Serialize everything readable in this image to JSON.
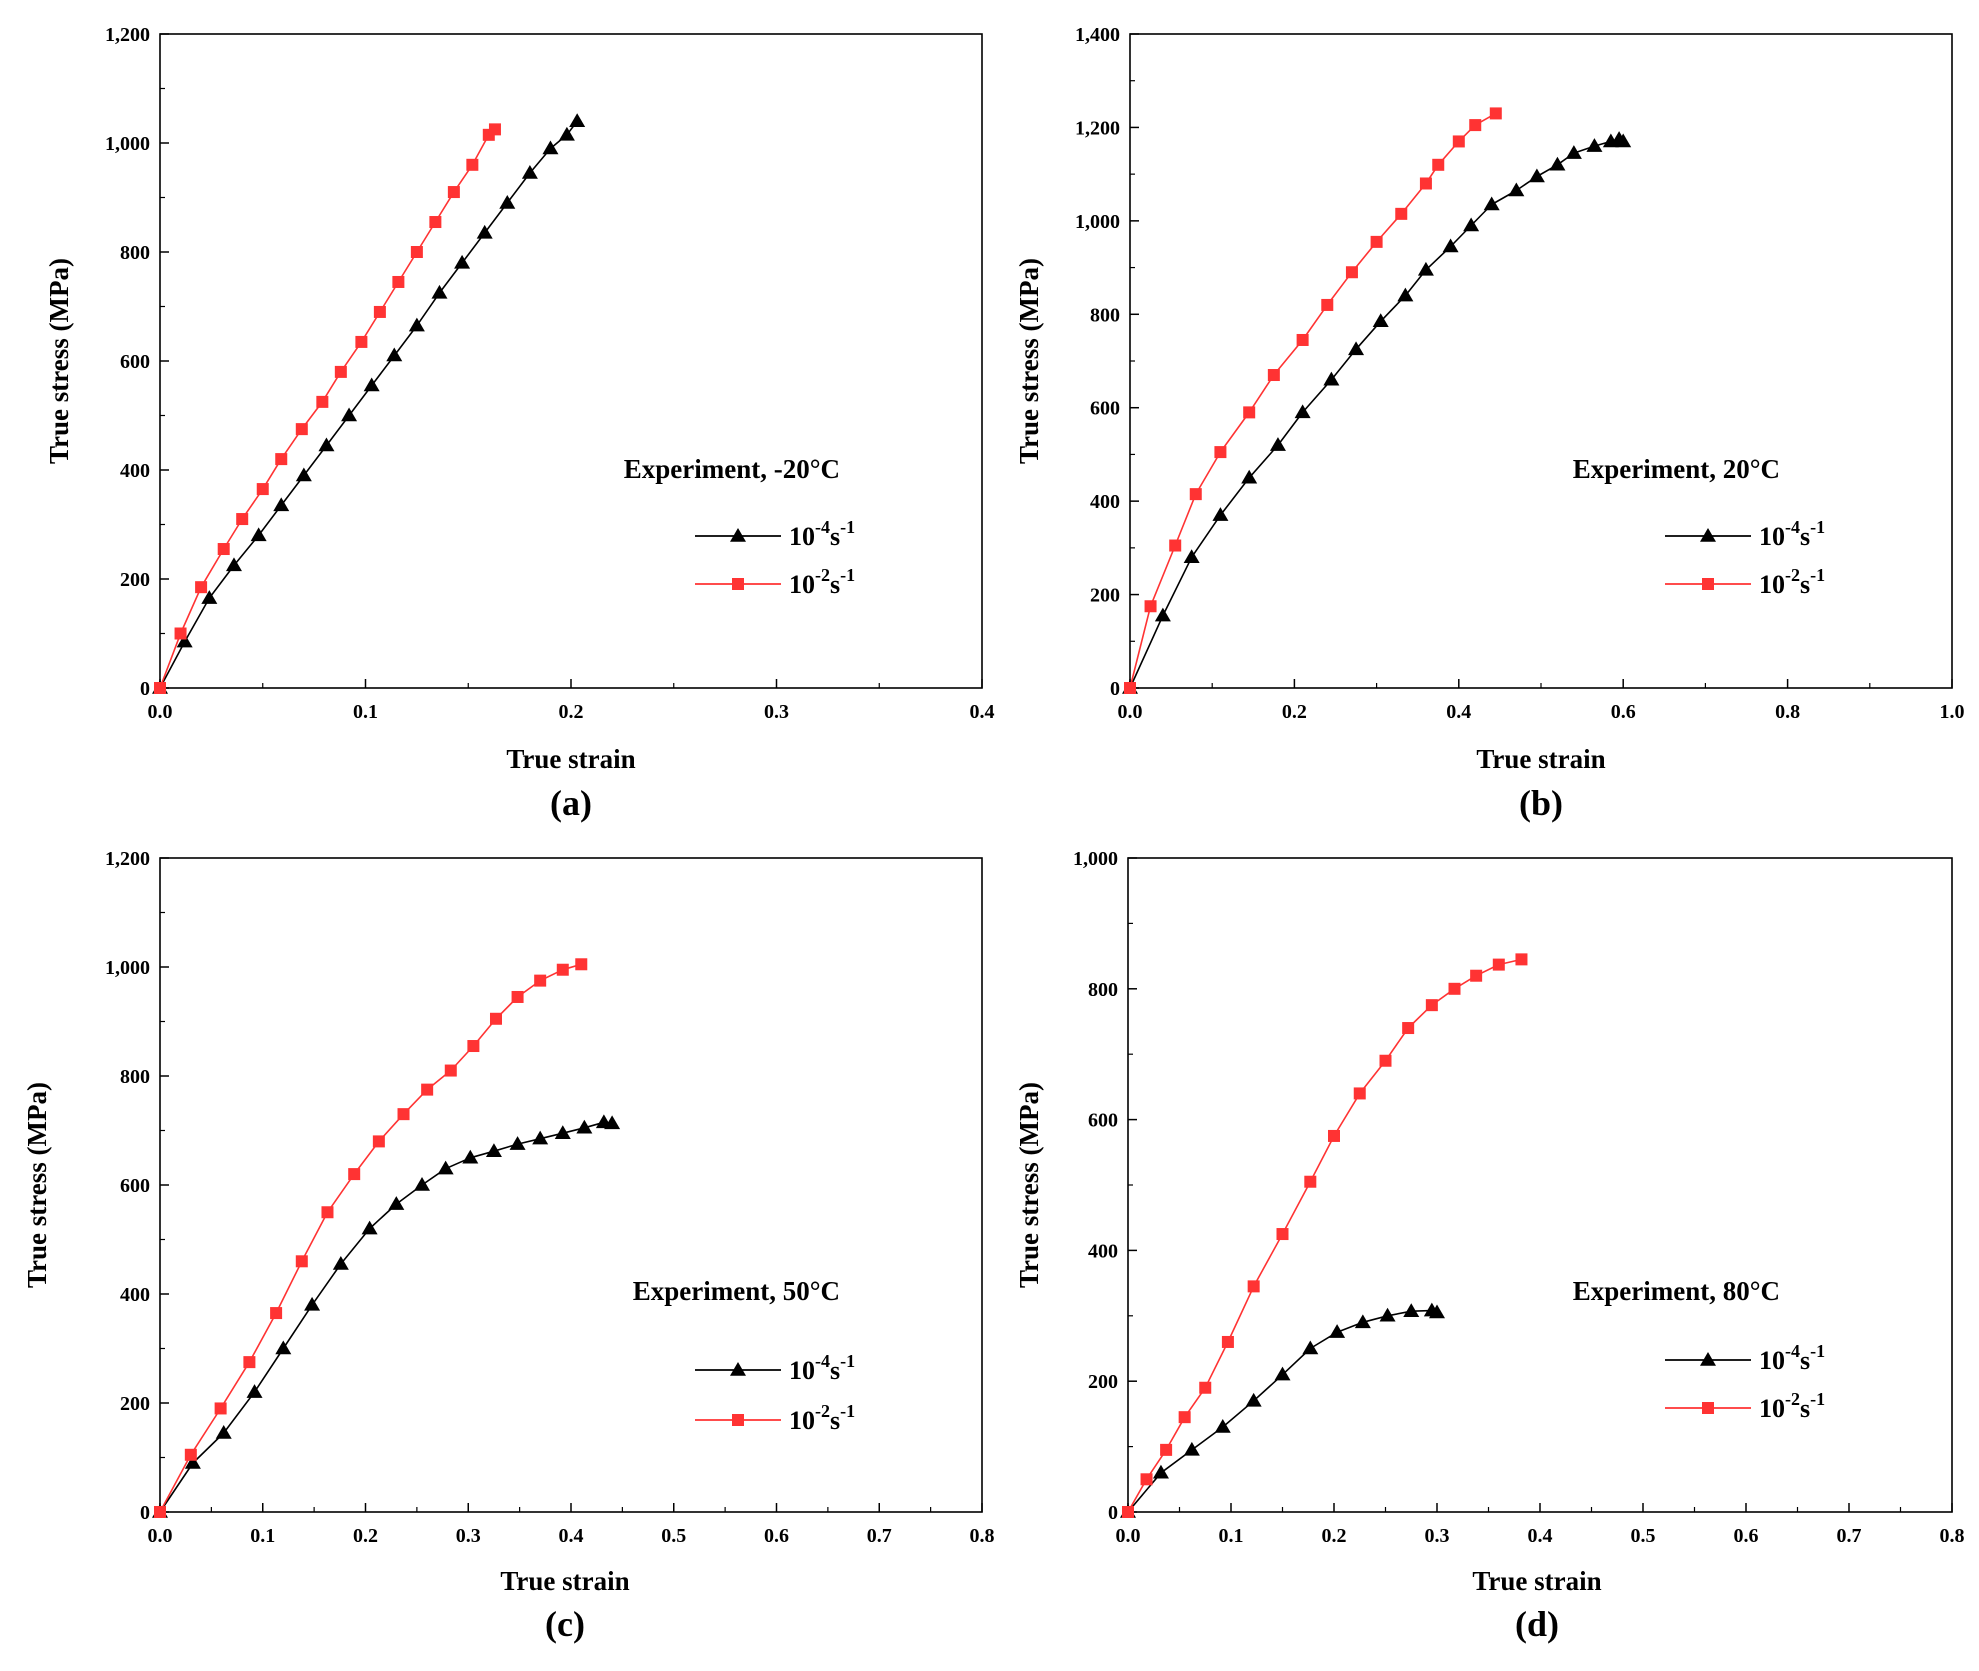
{
  "chart_data": [
    {
      "type": "line",
      "panel_label": "(a)",
      "xlabel": "True strain",
      "ylabel": "True stress (MPa)",
      "xlim": [
        0,
        0.4
      ],
      "ylim": [
        0,
        1200
      ],
      "xticks": [
        0,
        0.1,
        0.2,
        0.3,
        0.4
      ],
      "xtick_labels": [
        "0.0",
        "0.1",
        "0.2",
        "0.3",
        "0.4"
      ],
      "yticks": [
        0,
        200,
        400,
        600,
        800,
        1000,
        1200
      ],
      "ytick_labels": [
        "0",
        "200",
        "400",
        "600",
        "800",
        "1,000",
        "1,200"
      ],
      "legend": {
        "title": "Experiment, -20°C",
        "placement": "right"
      },
      "series": [
        {
          "name": "10^-4 s^-1",
          "base": "10",
          "exp1": "-4",
          "unit": "s",
          "exp2": "-1",
          "color": "#000000",
          "marker": "triangle",
          "x": [
            0,
            0.012,
            0.024,
            0.036,
            0.048,
            0.059,
            0.07,
            0.081,
            0.092,
            0.103,
            0.114,
            0.125,
            0.136,
            0.147,
            0.158,
            0.169,
            0.18,
            0.19,
            0.198,
            0.203
          ],
          "y": [
            0,
            85,
            165,
            225,
            280,
            335,
            390,
            445,
            500,
            555,
            610,
            665,
            725,
            780,
            835,
            890,
            945,
            990,
            1015,
            1040
          ]
        },
        {
          "name": "10^-2 s^-1",
          "base": "10",
          "exp1": "-2",
          "unit": "s",
          "exp2": "-1",
          "color": "#ff3333",
          "marker": "square",
          "x": [
            0,
            0.01,
            0.02,
            0.031,
            0.04,
            0.05,
            0.059,
            0.069,
            0.079,
            0.088,
            0.098,
            0.107,
            0.116,
            0.125,
            0.134,
            0.143,
            0.152,
            0.16,
            0.163
          ],
          "y": [
            0,
            100,
            185,
            255,
            310,
            365,
            420,
            475,
            525,
            580,
            635,
            690,
            745,
            800,
            855,
            910,
            960,
            1015,
            1025
          ]
        }
      ]
    },
    {
      "type": "line",
      "panel_label": "(b)",
      "xlabel": "True strain",
      "ylabel": "True stress (MPa)",
      "xlim": [
        0,
        1.0
      ],
      "ylim": [
        0,
        1400
      ],
      "xticks": [
        0,
        0.2,
        0.4,
        0.6,
        0.8,
        1.0
      ],
      "xtick_labels": [
        "0.0",
        "0.2",
        "0.4",
        "0.6",
        "0.8",
        "1.0"
      ],
      "yticks": [
        0,
        200,
        400,
        600,
        800,
        1000,
        1200,
        1400
      ],
      "ytick_labels": [
        "0",
        "200",
        "400",
        "600",
        "800",
        "1,000",
        "1,200",
        "1,400"
      ],
      "legend": {
        "title": "Experiment, 20°C",
        "placement": "right"
      },
      "series": [
        {
          "name": "10^-4 s^-1",
          "base": "10",
          "exp1": "-4",
          "unit": "s",
          "exp2": "-1",
          "color": "#000000",
          "marker": "triangle",
          "x": [
            0,
            0.04,
            0.075,
            0.11,
            0.145,
            0.18,
            0.21,
            0.245,
            0.275,
            0.305,
            0.335,
            0.36,
            0.39,
            0.415,
            0.44,
            0.47,
            0.495,
            0.52,
            0.54,
            0.565,
            0.585,
            0.595,
            0.6
          ],
          "y": [
            0,
            155,
            280,
            370,
            450,
            520,
            590,
            660,
            725,
            785,
            840,
            895,
            945,
            990,
            1035,
            1065,
            1095,
            1120,
            1145,
            1160,
            1170,
            1175,
            1170
          ]
        },
        {
          "name": "10^-2 s^-1",
          "base": "10",
          "exp1": "-2",
          "unit": "s",
          "exp2": "-1",
          "color": "#ff3333",
          "marker": "square",
          "x": [
            0,
            0.025,
            0.055,
            0.08,
            0.11,
            0.145,
            0.175,
            0.21,
            0.24,
            0.27,
            0.3,
            0.33,
            0.36,
            0.375,
            0.4,
            0.42,
            0.445
          ],
          "y": [
            0,
            175,
            305,
            415,
            505,
            590,
            670,
            745,
            820,
            890,
            955,
            1015,
            1080,
            1120,
            1170,
            1205,
            1230
          ]
        }
      ]
    },
    {
      "type": "line",
      "panel_label": "(c)",
      "xlabel": "True strain",
      "ylabel": "True stress (MPa)",
      "xlim": [
        0,
        0.8
      ],
      "ylim": [
        0,
        1200
      ],
      "xticks": [
        0,
        0.1,
        0.2,
        0.3,
        0.4,
        0.5,
        0.6,
        0.7,
        0.8
      ],
      "xtick_labels": [
        "0.0",
        "0.1",
        "0.2",
        "0.3",
        "0.4",
        "0.5",
        "0.6",
        "0.7",
        "0.8"
      ],
      "yticks": [
        0,
        200,
        400,
        600,
        800,
        1000,
        1200
      ],
      "ytick_labels": [
        "0",
        "200",
        "400",
        "600",
        "800",
        "1,000",
        "1,200"
      ],
      "legend": {
        "title": "Experiment, 50°C",
        "placement": "right"
      },
      "series": [
        {
          "name": "10^-4 s^-1",
          "base": "10",
          "exp1": "-4",
          "unit": "s",
          "exp2": "-1",
          "color": "#000000",
          "marker": "triangle",
          "x": [
            0,
            0.032,
            0.062,
            0.092,
            0.12,
            0.148,
            0.176,
            0.204,
            0.23,
            0.255,
            0.278,
            0.302,
            0.325,
            0.348,
            0.37,
            0.392,
            0.413,
            0.432,
            0.44
          ],
          "y": [
            0,
            90,
            145,
            220,
            300,
            380,
            455,
            520,
            565,
            600,
            630,
            650,
            662,
            675,
            685,
            695,
            705,
            715,
            713
          ]
        },
        {
          "name": "10^-2 s^-1",
          "base": "10",
          "exp1": "-2",
          "unit": "s",
          "exp2": "-1",
          "color": "#ff3333",
          "marker": "square",
          "x": [
            0,
            0.03,
            0.059,
            0.087,
            0.113,
            0.138,
            0.163,
            0.189,
            0.213,
            0.237,
            0.26,
            0.283,
            0.305,
            0.327,
            0.348,
            0.37,
            0.392,
            0.41
          ],
          "y": [
            0,
            105,
            190,
            275,
            365,
            460,
            550,
            620,
            680,
            730,
            775,
            810,
            855,
            905,
            945,
            975,
            995,
            1005
          ]
        }
      ]
    },
    {
      "type": "line",
      "panel_label": "(d)",
      "xlabel": "True strain",
      "ylabel": "True stress (MPa)",
      "xlim": [
        0,
        0.8
      ],
      "ylim": [
        0,
        1000
      ],
      "xticks": [
        0,
        0.1,
        0.2,
        0.3,
        0.4,
        0.5,
        0.6,
        0.7,
        0.8
      ],
      "xtick_labels": [
        "0.0",
        "0.1",
        "0.2",
        "0.3",
        "0.4",
        "0.5",
        "0.6",
        "0.7",
        "0.8"
      ],
      "yticks": [
        0,
        200,
        400,
        600,
        800,
        1000
      ],
      "ytick_labels": [
        "0",
        "200",
        "400",
        "600",
        "800",
        "1,000"
      ],
      "legend": {
        "title": "Experiment, 80°C",
        "placement": "right"
      },
      "series": [
        {
          "name": "10^-4 s^-1",
          "base": "10",
          "exp1": "-4",
          "unit": "s",
          "exp2": "-1",
          "color": "#000000",
          "marker": "triangle",
          "x": [
            0,
            0.032,
            0.062,
            0.092,
            0.122,
            0.15,
            0.177,
            0.203,
            0.228,
            0.252,
            0.275,
            0.295,
            0.3
          ],
          "y": [
            0,
            60,
            95,
            130,
            170,
            210,
            250,
            275,
            290,
            300,
            307,
            308,
            305
          ]
        },
        {
          "name": "10^-2 s^-1",
          "base": "10",
          "exp1": "-2",
          "unit": "s",
          "exp2": "-1",
          "color": "#ff3333",
          "marker": "square",
          "x": [
            0,
            0.018,
            0.037,
            0.055,
            0.075,
            0.097,
            0.122,
            0.15,
            0.177,
            0.2,
            0.225,
            0.25,
            0.272,
            0.295,
            0.317,
            0.338,
            0.36,
            0.382
          ],
          "y": [
            0,
            50,
            95,
            145,
            190,
            260,
            345,
            425,
            505,
            575,
            640,
            690,
            740,
            775,
            800,
            820,
            837,
            845
          ]
        }
      ]
    }
  ]
}
